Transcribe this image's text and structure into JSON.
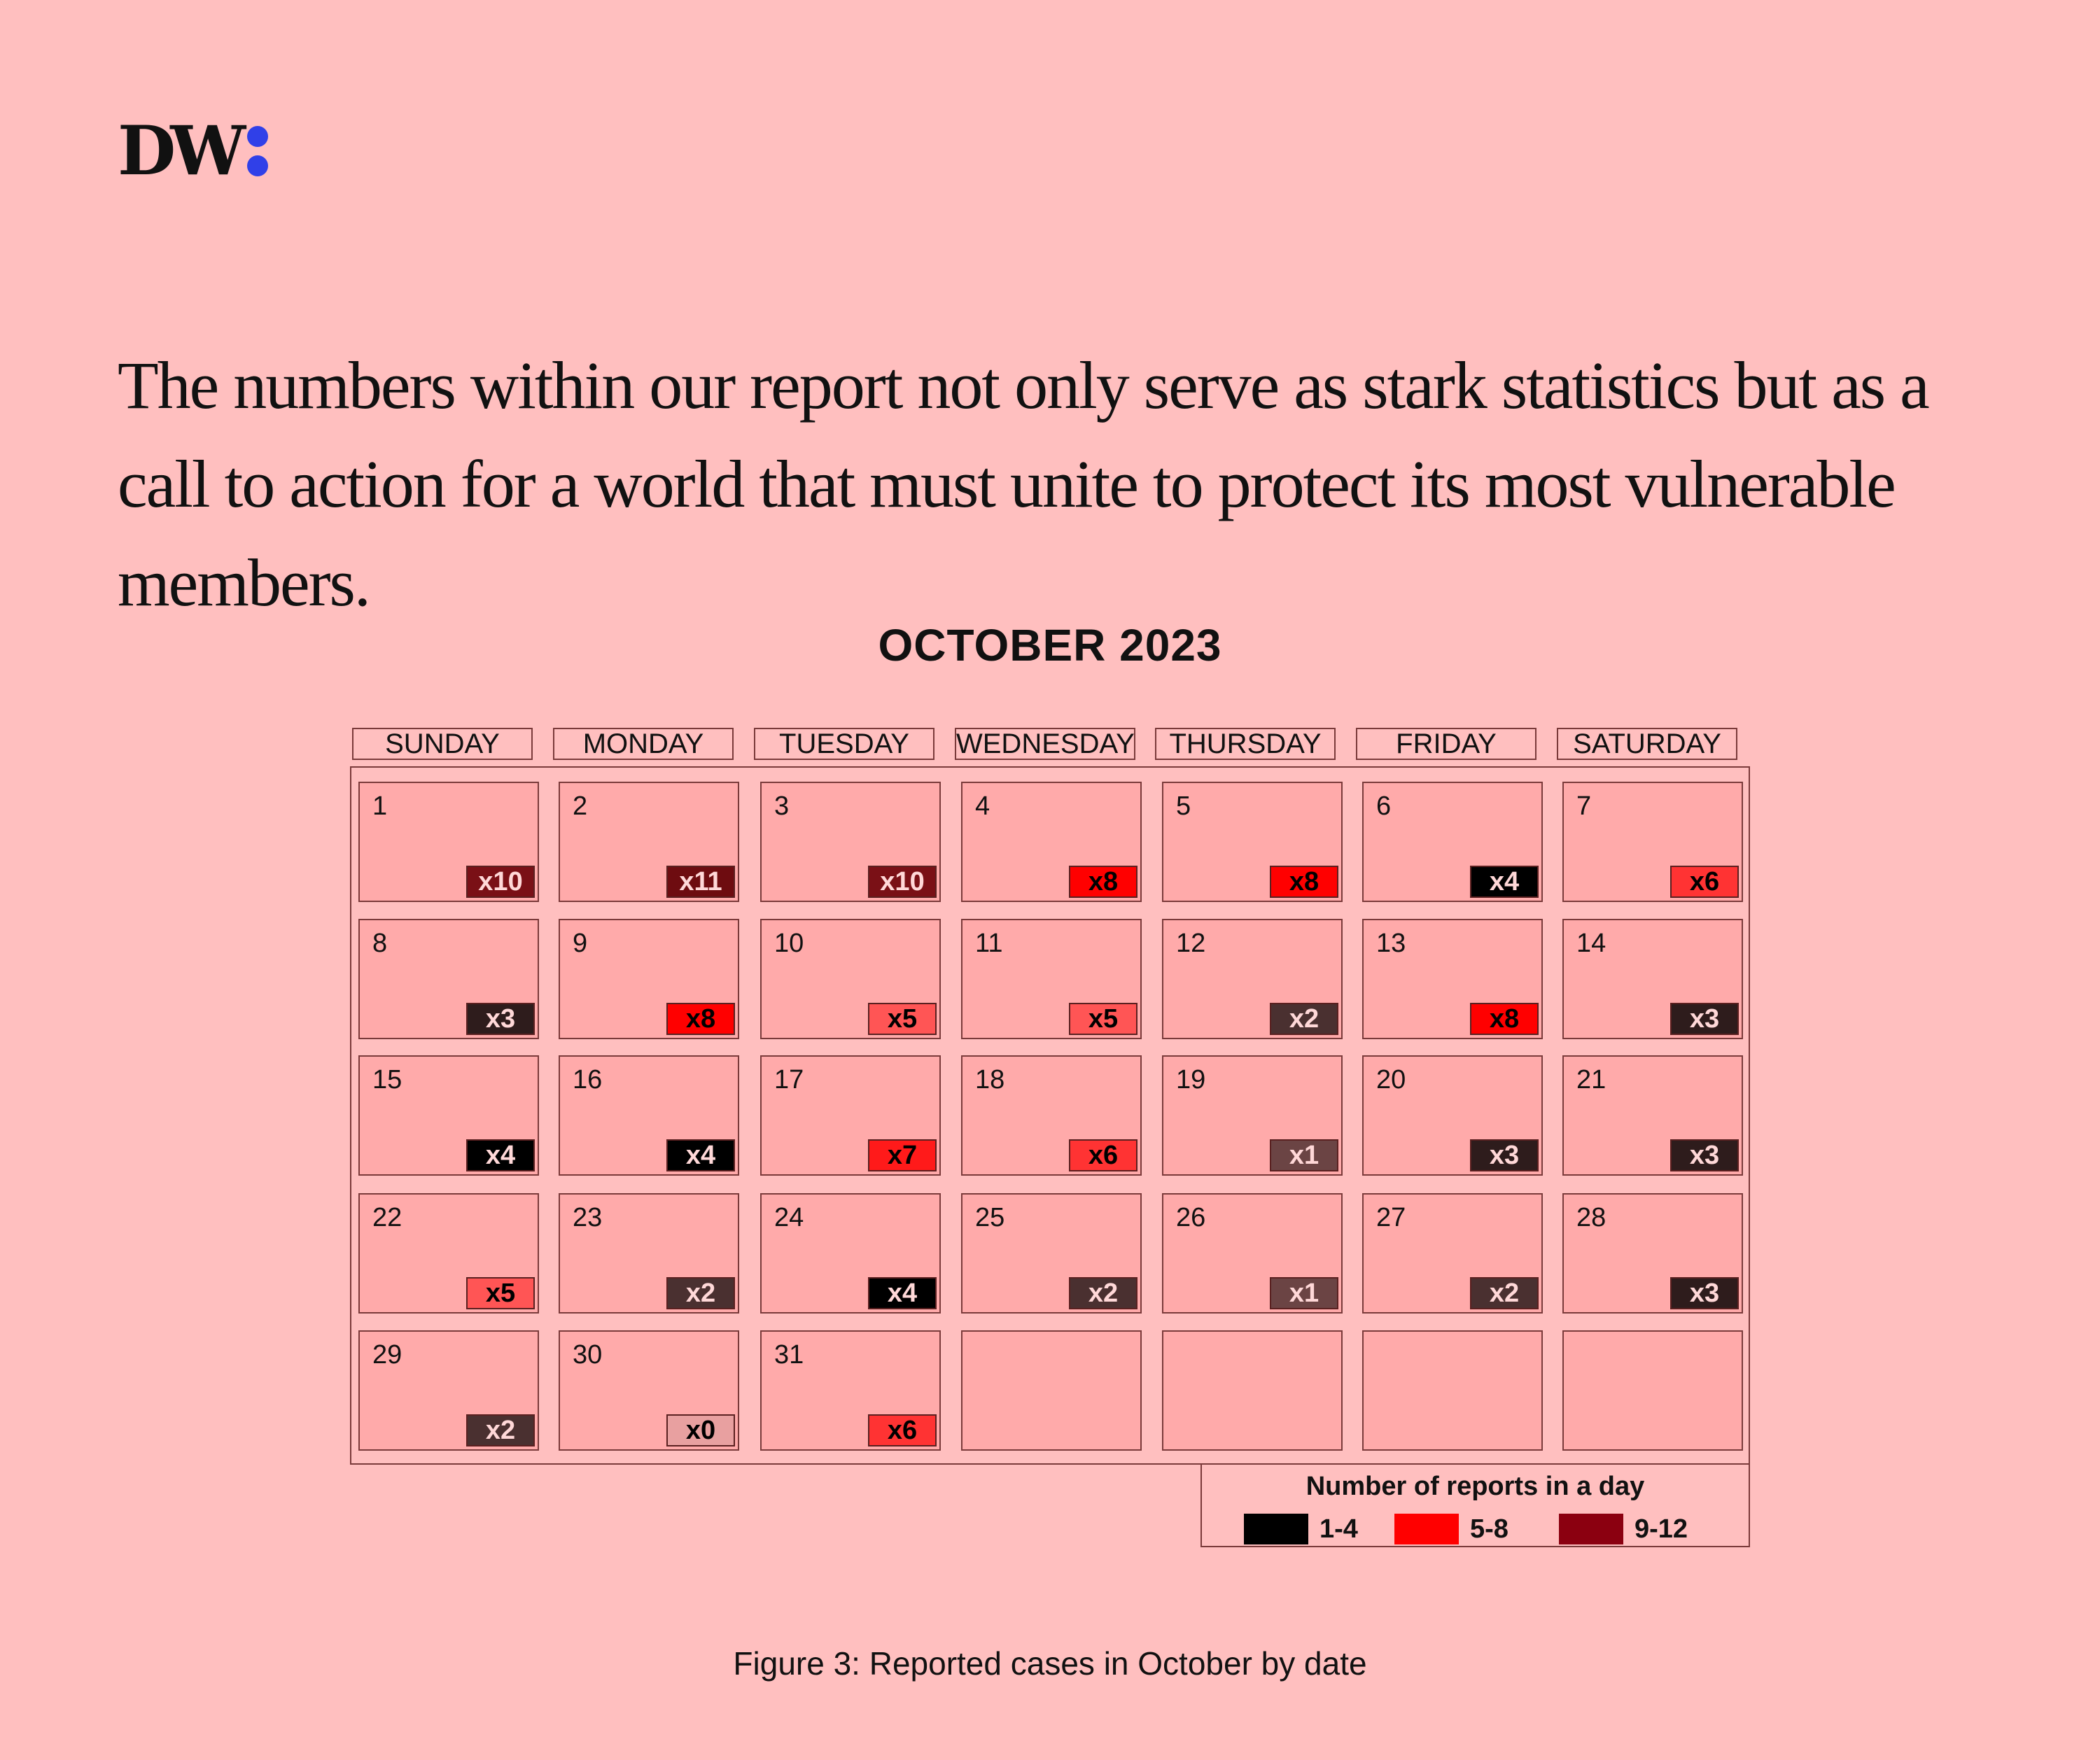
{
  "logo": {
    "text": "DW"
  },
  "headline": "The numbers within our report not only serve as stark statistics but as a call to action for a world that must unite to protect its most vulnerable members.",
  "chart_data": {
    "type": "heatmap",
    "title": "OCTOBER 2023",
    "weekdays": [
      "SUNDAY",
      "MONDAY",
      "TUESDAY",
      "WEDNESDAY",
      "THURSDAY",
      "FRIDAY",
      "SATURDAY"
    ],
    "first_weekday_index": 0,
    "days": [
      {
        "day": "1",
        "count": 10,
        "label": "x10"
      },
      {
        "day": "2",
        "count": 11,
        "label": "x11"
      },
      {
        "day": "3",
        "count": 10,
        "label": "x10"
      },
      {
        "day": "4",
        "count": 8,
        "label": "x8"
      },
      {
        "day": "5",
        "count": 8,
        "label": "x8"
      },
      {
        "day": "6",
        "count": 4,
        "label": "x4"
      },
      {
        "day": "7",
        "count": 6,
        "label": "x6"
      },
      {
        "day": "8",
        "count": 3,
        "label": "x3"
      },
      {
        "day": "9",
        "count": 8,
        "label": "x8"
      },
      {
        "day": "10",
        "count": 5,
        "label": "x5"
      },
      {
        "day": "11",
        "count": 5,
        "label": "x5"
      },
      {
        "day": "12",
        "count": 2,
        "label": "x2"
      },
      {
        "day": "13",
        "count": 8,
        "label": "x8"
      },
      {
        "day": "14",
        "count": 3,
        "label": "x3"
      },
      {
        "day": "15",
        "count": 4,
        "label": "x4"
      },
      {
        "day": "16",
        "count": 4,
        "label": "x4"
      },
      {
        "day": "17",
        "count": 7,
        "label": "x7"
      },
      {
        "day": "18",
        "count": 6,
        "label": "x6"
      },
      {
        "day": "19",
        "count": 1,
        "label": "x1"
      },
      {
        "day": "20",
        "count": 3,
        "label": "x3"
      },
      {
        "day": "21",
        "count": 3,
        "label": "x3"
      },
      {
        "day": "22",
        "count": 5,
        "label": "x5"
      },
      {
        "day": "23",
        "count": 2,
        "label": "x2"
      },
      {
        "day": "24",
        "count": 4,
        "label": "x4"
      },
      {
        "day": "25",
        "count": 2,
        "label": "x2"
      },
      {
        "day": "26",
        "count": 1,
        "label": "x1"
      },
      {
        "day": "27",
        "count": 2,
        "label": "x2"
      },
      {
        "day": "28",
        "count": 3,
        "label": "x3"
      },
      {
        "day": "29",
        "count": 2,
        "label": "x2"
      },
      {
        "day": "30",
        "count": 0,
        "label": "x0"
      },
      {
        "day": "31",
        "count": 6,
        "label": "x6"
      }
    ],
    "legend": {
      "title": "Number of reports in a day",
      "items": [
        {
          "label": "1-4",
          "color": "#000000"
        },
        {
          "label": "5-8",
          "color": "#ff0000"
        },
        {
          "label": "9-12",
          "color": "#8b0010"
        }
      ]
    },
    "count_colors": {
      "0": "#e8a0a0",
      "1": "#6b4444",
      "2": "#4a3030",
      "3": "#2e1c1c",
      "4": "#000000",
      "5": "#ff5555",
      "6": "#ff3333",
      "7": "#ff1a1a",
      "8": "#ff0000",
      "10": "#7a1016",
      "11": "#6e0c10"
    },
    "count_text_colors": {
      "light": "#ffd8d8",
      "dark": "#000000"
    }
  },
  "caption": "Figure 3: Reported cases in October by date"
}
